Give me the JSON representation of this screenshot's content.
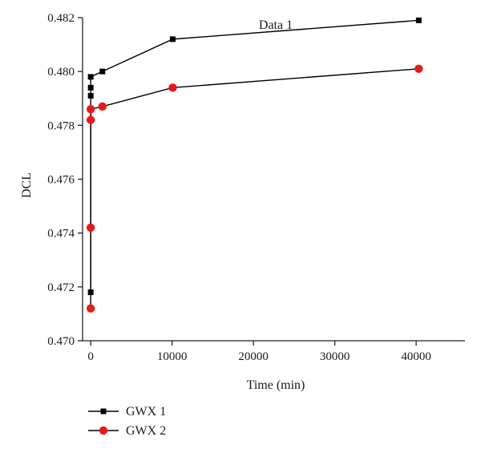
{
  "chart_data": {
    "type": "line",
    "title": "Data 1",
    "xlabel": "Time (min)",
    "ylabel": "DCL",
    "xlim": [
      -1000,
      46000
    ],
    "ylim": [
      0.47,
      0.482
    ],
    "x_ticks": [
      0,
      10000,
      20000,
      30000,
      40000
    ],
    "x_tick_labels": [
      "0",
      "10000",
      "20000",
      "30000",
      "40000"
    ],
    "y_ticks": [
      0.47,
      0.472,
      0.474,
      0.476,
      0.478,
      0.48,
      0.482
    ],
    "y_tick_labels": [
      "0.470",
      "0.472",
      "0.474",
      "0.476",
      "0.478",
      "0.480",
      "0.482"
    ],
    "grid": false,
    "legend_position": "bottom-left",
    "series": [
      {
        "name": "GWX 1",
        "marker": "square",
        "color": "#000000",
        "x": [
          0,
          0,
          0,
          0,
          1440,
          10080,
          40320
        ],
        "y": [
          0.4718,
          0.4791,
          0.4794,
          0.4798,
          0.48,
          0.4812,
          0.4819
        ]
      },
      {
        "name": "GWX 2",
        "marker": "circle",
        "color": "#e8191b",
        "x": [
          0,
          0,
          0,
          0,
          1440,
          10080,
          40320
        ],
        "y": [
          0.4712,
          0.4742,
          0.4782,
          0.4786,
          0.4787,
          0.4794,
          0.4801
        ]
      }
    ]
  }
}
